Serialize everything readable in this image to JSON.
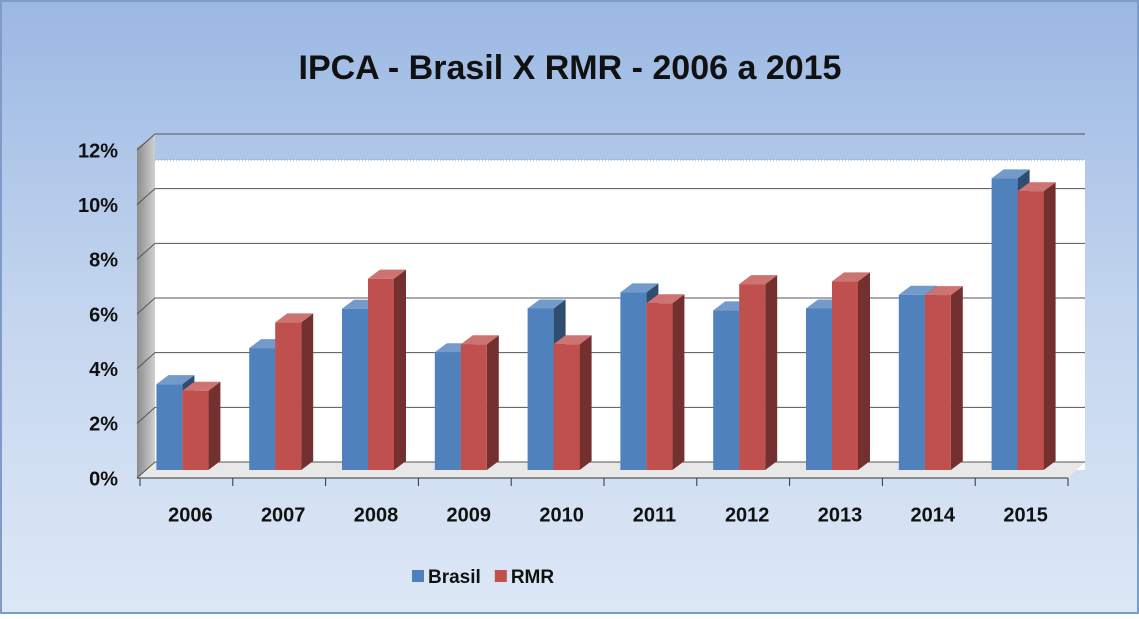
{
  "chart_data": {
    "type": "bar3d",
    "title": "IPCA - Brasil X RMR - 2006 a 2015",
    "categories": [
      "2006",
      "2007",
      "2008",
      "2009",
      "2010",
      "2011",
      "2012",
      "2013",
      "2014",
      "2015"
    ],
    "series": [
      {
        "name": "Brasil",
        "color": "#4f81bd",
        "values": [
          3.14,
          4.46,
          5.9,
          4.31,
          5.91,
          6.5,
          5.84,
          5.91,
          6.41,
          10.67
        ]
      },
      {
        "name": "RMR",
        "color": "#c0504d",
        "values": [
          2.9,
          5.4,
          7.0,
          4.6,
          4.6,
          6.1,
          6.8,
          6.9,
          6.4,
          10.2
        ]
      }
    ],
    "ylim": [
      0,
      12
    ],
    "yticks": [
      {
        "value": 0,
        "label": "0%"
      },
      {
        "value": 2,
        "label": "2%"
      },
      {
        "value": 4,
        "label": "4%"
      },
      {
        "value": 6,
        "label": "6%"
      },
      {
        "value": 8,
        "label": "8%"
      },
      {
        "value": 10,
        "label": "10%"
      },
      {
        "value": 12,
        "label": "12%"
      }
    ],
    "grid": true,
    "legend": "bottom"
  }
}
